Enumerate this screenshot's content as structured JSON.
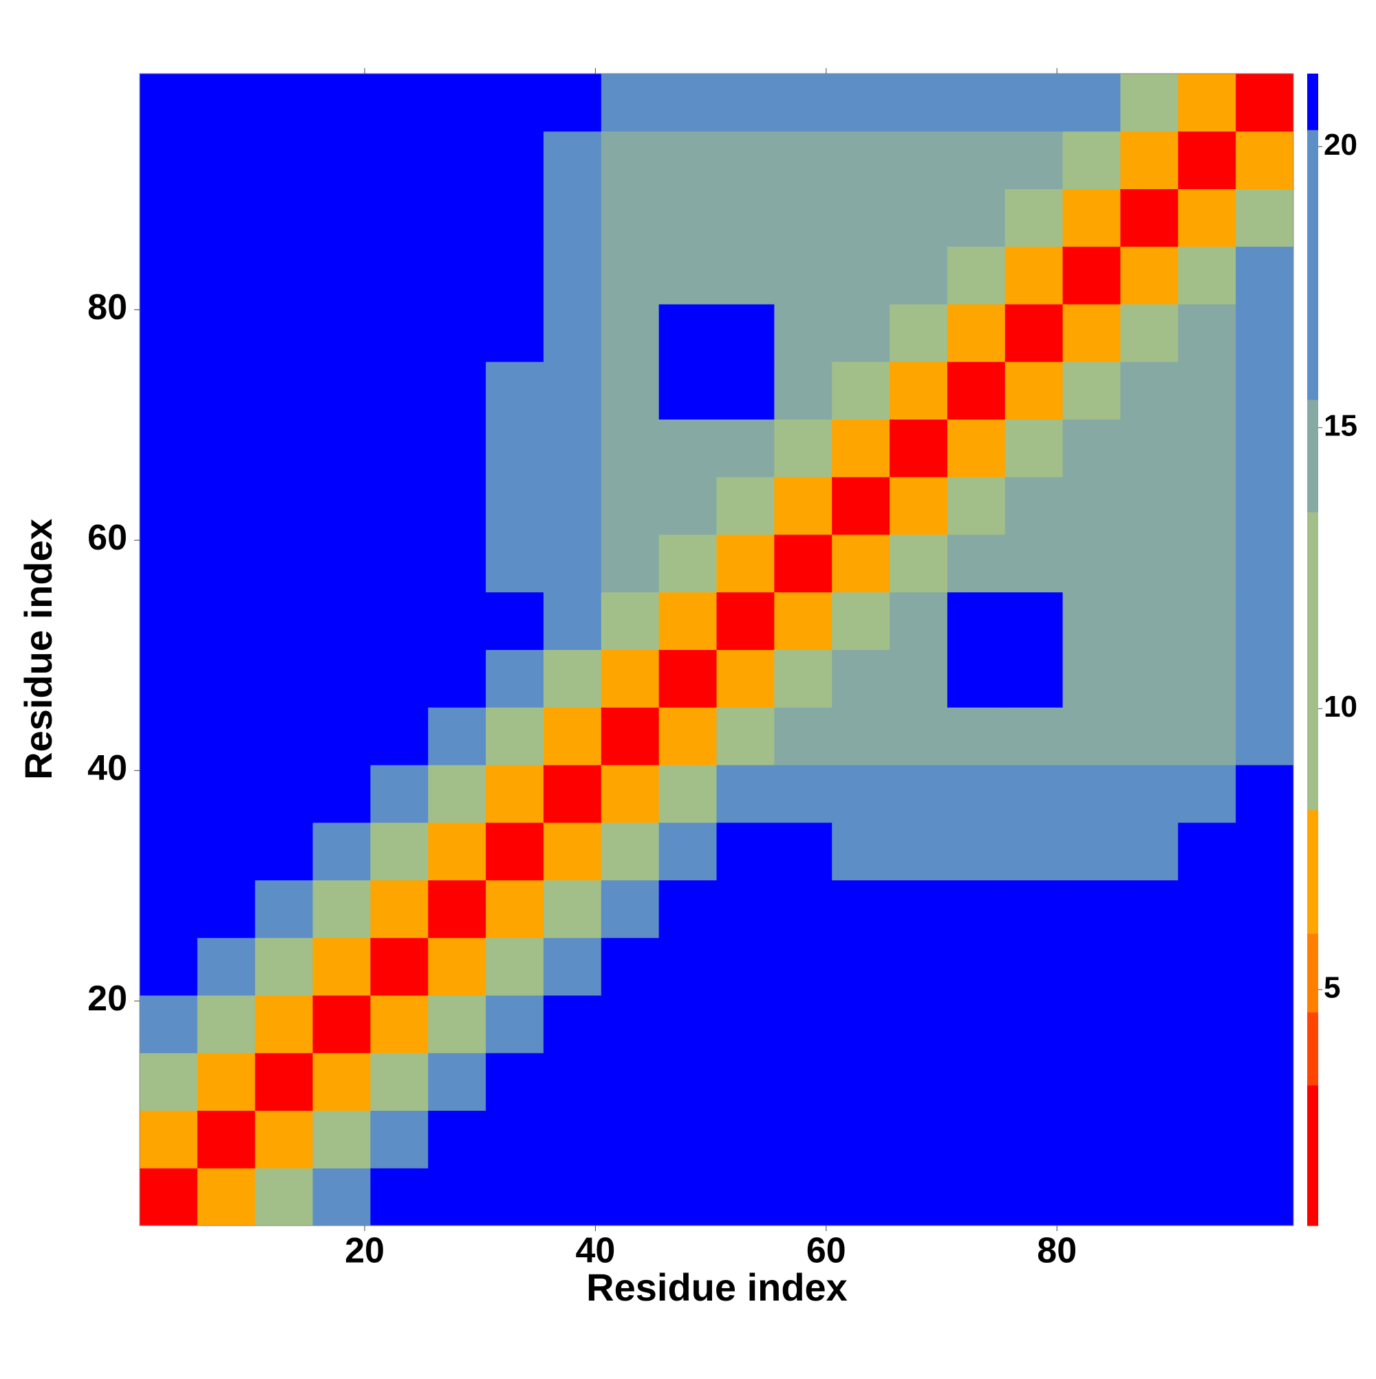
{
  "chart_data": {
    "type": "heatmap",
    "xlabel": "Residue index",
    "ylabel": "Residue index",
    "xlim": [
      0.5,
      100.5
    ],
    "ylim": [
      0.5,
      100.5
    ],
    "xticks": [
      20,
      40,
      60,
      80
    ],
    "yticks": [
      20,
      40,
      60,
      80
    ],
    "xbins": [
      0.5,
      5.5,
      10.5,
      15.5,
      20.5,
      25.5,
      30.5,
      35.5,
      40.5,
      45.5,
      50.5,
      55.5,
      60.5,
      65.5,
      70.5,
      75.5,
      80.5,
      85.5,
      90.5,
      95.5,
      100.5
    ],
    "ybins": [
      0.5,
      5.5,
      10.5,
      15.5,
      20.5,
      25.5,
      30.5,
      35.5,
      40.5,
      45.5,
      50.5,
      55.5,
      60.5,
      65.5,
      70.5,
      75.5,
      80.5,
      85.5,
      90.5,
      95.5,
      100.5
    ],
    "z": [
      [
        3,
        8,
        13,
        18,
        22,
        22,
        22,
        22,
        22,
        22,
        22,
        22,
        22,
        22,
        22,
        22,
        22,
        22,
        22,
        22
      ],
      [
        8,
        3,
        8,
        13,
        18,
        22,
        22,
        22,
        22,
        22,
        22,
        22,
        22,
        22,
        22,
        22,
        22,
        22,
        22,
        22
      ],
      [
        13,
        8,
        3,
        8,
        13,
        18,
        22,
        22,
        22,
        22,
        22,
        22,
        22,
        22,
        22,
        22,
        22,
        22,
        22,
        22
      ],
      [
        18,
        13,
        8,
        3,
        8,
        13,
        18,
        22,
        22,
        22,
        22,
        22,
        22,
        22,
        22,
        22,
        22,
        22,
        22,
        22
      ],
      [
        22,
        18,
        13,
        8,
        3,
        8,
        13,
        18,
        22,
        22,
        22,
        22,
        22,
        22,
        22,
        22,
        22,
        22,
        22,
        22
      ],
      [
        22,
        22,
        18,
        13,
        8,
        3,
        8,
        13,
        18,
        22,
        22,
        22,
        22,
        22,
        22,
        22,
        22,
        22,
        22,
        22
      ],
      [
        22,
        22,
        22,
        18,
        13,
        8,
        3,
        8,
        13,
        18,
        22,
        22,
        18,
        18,
        18,
        18,
        18,
        18,
        22,
        22
      ],
      [
        22,
        22,
        22,
        22,
        18,
        13,
        8,
        3,
        8,
        13,
        17,
        17,
        17,
        17,
        17,
        17,
        17,
        17,
        17,
        22
      ],
      [
        22,
        22,
        22,
        22,
        22,
        18,
        13,
        8,
        3,
        8,
        13,
        14,
        14,
        14,
        14,
        14,
        14,
        14,
        14,
        17
      ],
      [
        22,
        22,
        22,
        22,
        22,
        22,
        18,
        13,
        8,
        3,
        8,
        13,
        14,
        14,
        22,
        22,
        14,
        14,
        14,
        17
      ],
      [
        22,
        22,
        22,
        22,
        22,
        22,
        22,
        17,
        13,
        8,
        3,
        8,
        13,
        14,
        22,
        22,
        14,
        14,
        14,
        17
      ],
      [
        22,
        22,
        22,
        22,
        22,
        22,
        18,
        17,
        14,
        13,
        8,
        3,
        8,
        13,
        14,
        14,
        14,
        14,
        14,
        17
      ],
      [
        22,
        22,
        22,
        22,
        22,
        22,
        18,
        17,
        14,
        14,
        13,
        8,
        3,
        8,
        13,
        14,
        14,
        14,
        14,
        17
      ],
      [
        22,
        22,
        22,
        22,
        22,
        22,
        18,
        17,
        14,
        14,
        14,
        13,
        8,
        3,
        8,
        13,
        14,
        14,
        14,
        17
      ],
      [
        22,
        22,
        22,
        22,
        22,
        22,
        18,
        17,
        14,
        22,
        22,
        14,
        13,
        8,
        3,
        8,
        13,
        14,
        14,
        17
      ],
      [
        22,
        22,
        22,
        22,
        22,
        22,
        22,
        17,
        14,
        22,
        22,
        14,
        14,
        13,
        8,
        3,
        8,
        13,
        14,
        17
      ],
      [
        22,
        22,
        22,
        22,
        22,
        22,
        22,
        17,
        14,
        14,
        14,
        14,
        14,
        14,
        13,
        8,
        3,
        8,
        13,
        17
      ],
      [
        22,
        22,
        22,
        22,
        22,
        22,
        22,
        17,
        14,
        14,
        14,
        14,
        14,
        14,
        14,
        13,
        8,
        3,
        8,
        13
      ],
      [
        22,
        22,
        22,
        22,
        22,
        22,
        22,
        17,
        14,
        14,
        14,
        14,
        14,
        14,
        14,
        14,
        13,
        8,
        3,
        8
      ],
      [
        22,
        22,
        22,
        22,
        22,
        22,
        22,
        22,
        17,
        17,
        17,
        17,
        17,
        17,
        17,
        17,
        17,
        13,
        8,
        3
      ]
    ],
    "zlim": [
      0.8,
      21.3
    ],
    "zticks": [
      5,
      10,
      15,
      20
    ],
    "colorscale": {
      "bounds": [
        0.8,
        3.3,
        4.6,
        6,
        8.2,
        13.5,
        15.5,
        20.3,
        21.3
      ],
      "colors": [
        "#ff0000",
        "#ff4500",
        "#ff8000",
        "#ffa500",
        "#a2bf8a",
        "#86aaa3",
        "#5d8ec6",
        "#0000ff"
      ]
    }
  }
}
